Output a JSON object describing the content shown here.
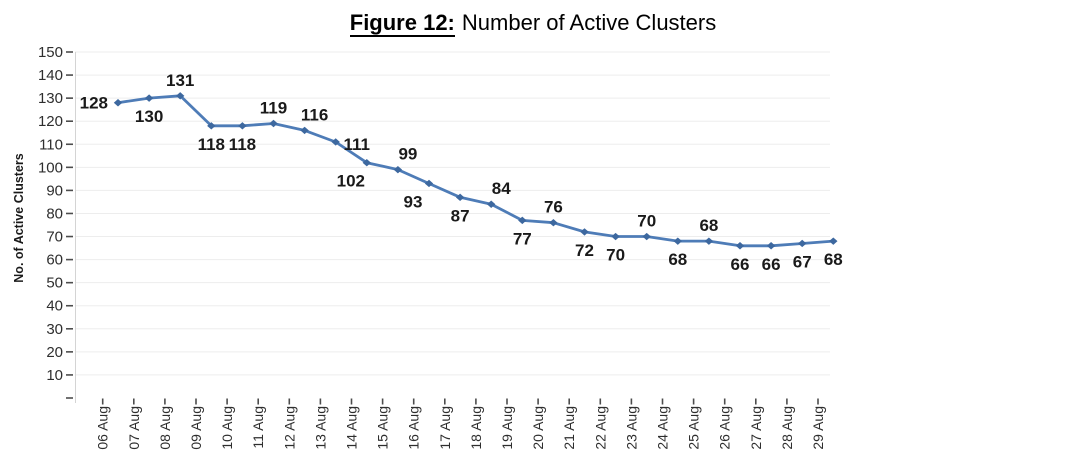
{
  "figure": {
    "label": "Figure 12:",
    "title": "Number of Active Clusters"
  },
  "chart_data": {
    "type": "line",
    "title": "Figure 12: Number of Active Clusters",
    "ylabel": "No. of Active Clusters",
    "xlabel": "",
    "categories": [
      "06 Aug",
      "07 Aug",
      "08 Aug",
      "09 Aug",
      "10 Aug",
      "11 Aug",
      "12 Aug",
      "13 Aug",
      "14 Aug",
      "15 Aug",
      "16 Aug",
      "17 Aug",
      "18 Aug",
      "19 Aug",
      "20 Aug",
      "21 Aug",
      "22 Aug",
      "23 Aug",
      "24 Aug",
      "25 Aug",
      "26 Aug",
      "27 Aug",
      "28 Aug",
      "29 Aug"
    ],
    "values": [
      128,
      130,
      131,
      118,
      118,
      119,
      116,
      111,
      102,
      99,
      93,
      87,
      84,
      77,
      76,
      72,
      70,
      70,
      68,
      68,
      66,
      66,
      67,
      68
    ],
    "ylim": [
      0,
      150
    ],
    "ytick_step": 10,
    "xtick_rotation": 90,
    "grid": "horizontal",
    "legend": "none",
    "data_labels_visible": true,
    "data_label_positions": [
      "left",
      "below",
      "above",
      "below",
      "below",
      "above",
      "above-right",
      "mid-right",
      "below-left",
      "above-right",
      "below-left",
      "below",
      "above-right",
      "below",
      "above",
      "below",
      "below",
      "above",
      "below",
      "above",
      "below",
      "below",
      "below",
      "below"
    ],
    "colors": {
      "line": "#4e7cb7",
      "marker": "#3d689f",
      "grid": "#ededed",
      "axis_line": "#d4d4d4",
      "tick": "#4d4d4d",
      "tick_text": "#2e2e2e",
      "data_label": "#1a1a1a"
    }
  }
}
